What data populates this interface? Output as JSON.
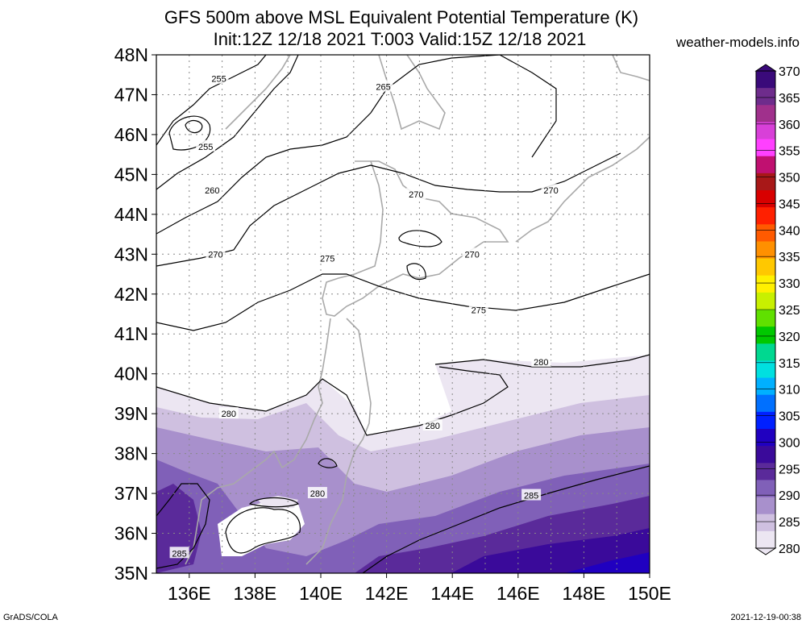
{
  "title": {
    "line1": "GFS 500m above MSL Equivalent Potential Temperature (K)",
    "line2": "Init:12Z 12/18 2021 T:003 Valid:15Z 12/18 2021"
  },
  "site": "weather-models.info",
  "footer": {
    "left": "GrADS/COLA",
    "right": "2021-12-19-00:38"
  },
  "map": {
    "lat_labels": [
      "48N",
      "47N",
      "46N",
      "45N",
      "44N",
      "43N",
      "42N",
      "41N",
      "40N",
      "39N",
      "38N",
      "37N",
      "36N",
      "35N"
    ],
    "lon_labels": [
      "136E",
      "138E",
      "140E",
      "142E",
      "144E",
      "146E",
      "148E",
      "150E"
    ],
    "contour_labels": [
      {
        "text": "255",
        "lat": 47.4,
        "lon": 136.9
      },
      {
        "text": "255",
        "lat": 45.7,
        "lon": 136.5
      },
      {
        "text": "260",
        "lat": 44.6,
        "lon": 136.7
      },
      {
        "text": "265",
        "lat": 47.2,
        "lon": 141.9
      },
      {
        "text": "270",
        "lat": 44.5,
        "lon": 142.9
      },
      {
        "text": "270",
        "lat": 44.6,
        "lon": 147.0
      },
      {
        "text": "270",
        "lat": 43.0,
        "lon": 136.8
      },
      {
        "text": "270",
        "lat": 43.0,
        "lon": 144.6
      },
      {
        "text": "275",
        "lat": 42.9,
        "lon": 140.2
      },
      {
        "text": "275",
        "lat": 41.6,
        "lon": 144.8
      },
      {
        "text": "280",
        "lat": 40.3,
        "lon": 146.7
      },
      {
        "text": "280",
        "lat": 39.0,
        "lon": 137.2
      },
      {
        "text": "280",
        "lat": 38.7,
        "lon": 143.4
      },
      {
        "text": "280",
        "lat": 37.0,
        "lon": 139.9
      },
      {
        "text": "285",
        "lat": 36.95,
        "lon": 146.4
      },
      {
        "text": "285",
        "lat": 35.5,
        "lon": 135.7
      }
    ]
  },
  "colorbar": {
    "ticks": [
      "370",
      "365",
      "360",
      "355",
      "350",
      "345",
      "340",
      "335",
      "330",
      "325",
      "320",
      "315",
      "310",
      "305",
      "300",
      "295",
      "290",
      "285",
      "280"
    ],
    "colors": [
      "#3a0a7a",
      "#6e2c8c",
      "#a0308c",
      "#d840d8",
      "#ff40ff",
      "#c01070",
      "#a81818",
      "#d80000",
      "#ff2000",
      "#ff5a00",
      "#ff9000",
      "#ffc800",
      "#fff000",
      "#c8f000",
      "#60e000",
      "#00c800",
      "#00d890",
      "#00e0e0",
      "#00b0ff",
      "#0070ff",
      "#0020ff",
      "#2000c0",
      "#3a0a9a",
      "#5a2a9a",
      "#8060b8",
      "#a890cc",
      "#cfc0e0",
      "#ece6f2"
    ]
  }
}
